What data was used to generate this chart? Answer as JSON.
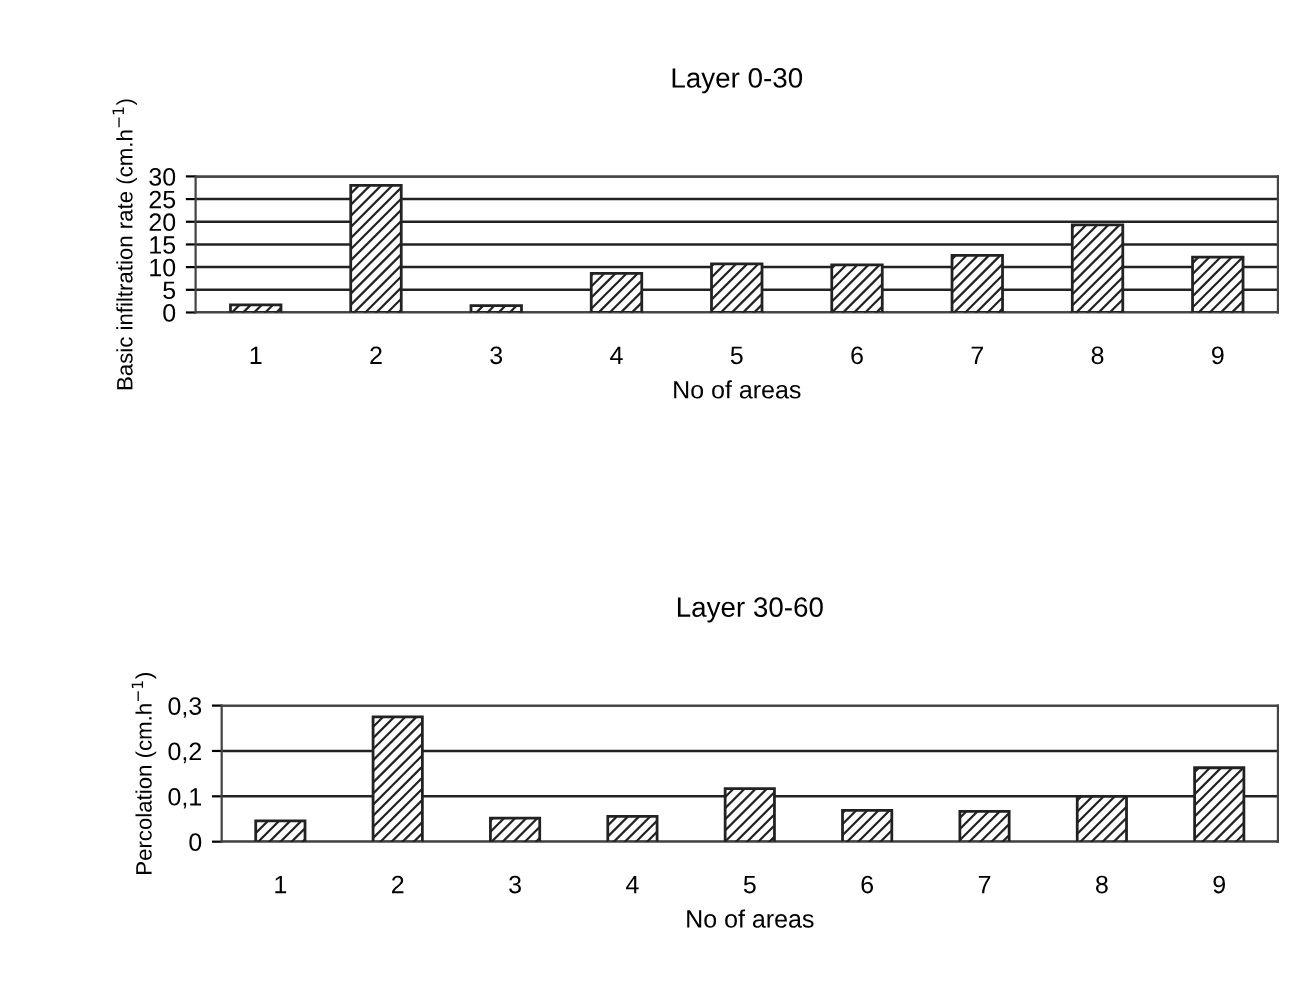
{
  "chart_data": [
    {
      "type": "bar",
      "title": "Layer 0-30",
      "xlabel": "No of areas",
      "ylabel": "Basic infiltration rate (cm.h$^{−1}$)",
      "categories": [
        "1",
        "2",
        "3",
        "4",
        "5",
        "6",
        "7",
        "8",
        "9"
      ],
      "series": [
        {
          "color": "#222222",
          "values": [
            1.7,
            28,
            1.5,
            8.6,
            10.7,
            10.5,
            12.6,
            19.3,
            12.2
          ]
        }
      ],
      "ylim": [
        0,
        30
      ],
      "yticks": [
        0,
        5,
        10,
        15,
        20,
        25,
        30
      ],
      "grid": "y",
      "legend": false
    },
    {
      "type": "bar",
      "title": "Layer 30-60",
      "xlabel": "No of areas",
      "ylabel": "Percolation (cm.h$^{−1}$)",
      "categories": [
        "1",
        "2",
        "3",
        "4",
        "5",
        "6",
        "7",
        "8",
        "9"
      ],
      "series": [
        {
          "color": "#222222",
          "values": [
            0.046,
            0.275,
            0.052,
            0.056,
            0.117,
            0.069,
            0.067,
            0.1,
            0.163
          ]
        }
      ],
      "ylim": [
        0,
        0.3
      ],
      "yticks": [
        {
          "value": 0,
          "label": "0"
        },
        {
          "value": 0.1,
          "label": "0,1"
        },
        {
          "value": 0.2,
          "label": "0,2"
        },
        {
          "value": 0.3,
          "label": "0,3"
        }
      ],
      "grid": "y",
      "legend": false
    }
  ]
}
